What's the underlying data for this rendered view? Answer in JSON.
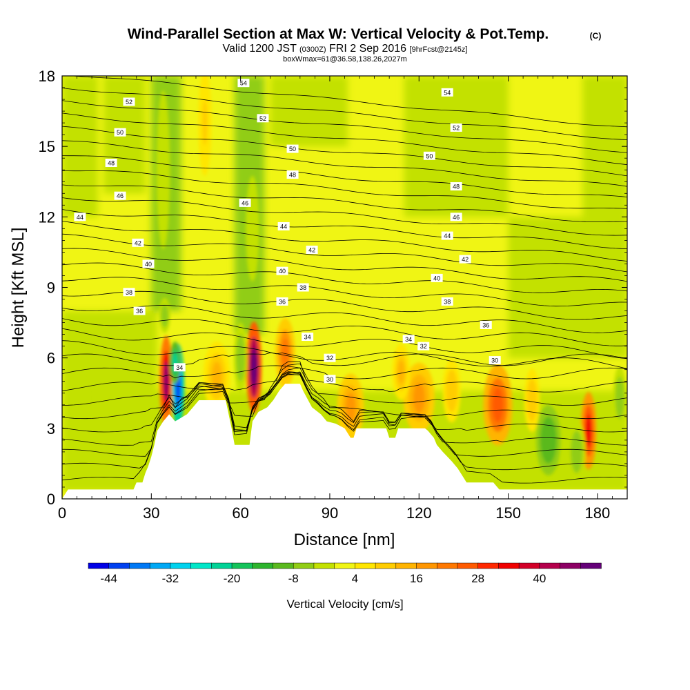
{
  "title": {
    "main": "Wind-Parallel Section at Max W: Vertical Velocity & Pot.Temp.",
    "copyright": "(C)",
    "valid_prefix": "Valid 1200 JST",
    "valid_z": "(0300Z)",
    "valid_date": "FRI 2 Sep 2016",
    "forecast": "[9hrFcst@2145z]",
    "boxline": "boxWmax=61@36.58,138.26,2027m"
  },
  "chart_data": {
    "type": "heatmap",
    "title": "Wind-Parallel Section at Max W: Vertical Velocity & Pot.Temp.",
    "xlabel": "Distance [nm]",
    "ylabel": "Height [Kft MSL]",
    "xlim": [
      0,
      190
    ],
    "ylim": [
      0,
      18
    ],
    "x_ticks": [
      0,
      30,
      60,
      90,
      120,
      150,
      180
    ],
    "y_ticks": [
      0,
      3,
      6,
      9,
      12,
      15,
      18
    ],
    "colorbar": {
      "label": "Vertical Velocity [cm/s]",
      "min": -48,
      "max": 52,
      "step": 4,
      "tick_labels": [
        "-44",
        "-32",
        "-20",
        "-8",
        "4",
        "16",
        "28",
        "40"
      ],
      "colors": [
        "#0000e6",
        "#0040f0",
        "#0078f5",
        "#00a8f5",
        "#00d2ee",
        "#00e6c8",
        "#00d296",
        "#14c35a",
        "#2db42d",
        "#5ab91e",
        "#91cd14",
        "#c3e100",
        "#f0f514",
        "#ffe600",
        "#ffcd00",
        "#ffb400",
        "#ff9600",
        "#ff7800",
        "#ff5a00",
        "#ff2800",
        "#f00000",
        "#d20028",
        "#b4004b",
        "#8c0064",
        "#640078"
      ]
    },
    "terrain_kft": [
      [
        0,
        0.0
      ],
      [
        2,
        0.4
      ],
      [
        24,
        0.4
      ],
      [
        25,
        0.7
      ],
      [
        27,
        0.7
      ],
      [
        28,
        1.1
      ],
      [
        29,
        1.4
      ],
      [
        30,
        1.8
      ],
      [
        31,
        2.3
      ],
      [
        32,
        2.9
      ],
      [
        34,
        3.3
      ],
      [
        36,
        3.6
      ],
      [
        38,
        3.3
      ],
      [
        42,
        3.6
      ],
      [
        44,
        3.9
      ],
      [
        46,
        4.2
      ],
      [
        55,
        4.2
      ],
      [
        56,
        3.6
      ],
      [
        57,
        3.0
      ],
      [
        58,
        2.3
      ],
      [
        63,
        2.3
      ],
      [
        64,
        3.3
      ],
      [
        66,
        3.7
      ],
      [
        69,
        3.9
      ],
      [
        71,
        4.2
      ],
      [
        73,
        4.6
      ],
      [
        75,
        4.9
      ],
      [
        80,
        4.9
      ],
      [
        81,
        4.6
      ],
      [
        84,
        3.9
      ],
      [
        87,
        3.6
      ],
      [
        89,
        3.3
      ],
      [
        92,
        3.2
      ],
      [
        95,
        3.0
      ],
      [
        97,
        2.6
      ],
      [
        98,
        2.6
      ],
      [
        99,
        3.0
      ],
      [
        109,
        3.0
      ],
      [
        110,
        2.6
      ],
      [
        112,
        2.6
      ],
      [
        113,
        3.0
      ],
      [
        122,
        3.0
      ],
      [
        123,
        2.9
      ],
      [
        125,
        2.6
      ],
      [
        126,
        2.3
      ],
      [
        128,
        2.0
      ],
      [
        131,
        1.6
      ],
      [
        133,
        1.3
      ],
      [
        134,
        1.1
      ],
      [
        136,
        0.7
      ],
      [
        145,
        0.7
      ],
      [
        147,
        0.4
      ],
      [
        160,
        0.4
      ],
      [
        190,
        0.4
      ],
      [
        190,
        0.0
      ]
    ],
    "updrafts": [
      {
        "x": 35.0,
        "y": 5.0,
        "w": 3.0,
        "h": 2.6,
        "value": 44
      },
      {
        "x": 64.5,
        "y": 5.6,
        "w": 3.5,
        "h": 2.6,
        "value": 52
      },
      {
        "x": 75.0,
        "y": 6.2,
        "w": 4.5,
        "h": 2.0,
        "value": 20
      },
      {
        "x": 97.0,
        "y": 3.9,
        "w": 6.0,
        "h": 1.9,
        "value": 16
      },
      {
        "x": 120.0,
        "y": 4.3,
        "w": 7.0,
        "h": 2.0,
        "value": 16
      },
      {
        "x": 146.5,
        "y": 4.0,
        "w": 6.5,
        "h": 2.3,
        "value": 26
      },
      {
        "x": 177.0,
        "y": 2.9,
        "w": 3.5,
        "h": 2.2,
        "value": 34
      },
      {
        "x": 52.0,
        "y": 5.2,
        "w": 6.0,
        "h": 2.0,
        "value": 12
      },
      {
        "x": 48.0,
        "y": 16.0,
        "w": 3.0,
        "h": 3.0,
        "value": 8
      },
      {
        "x": 114.0,
        "y": 5.4,
        "w": 4.0,
        "h": 1.6,
        "value": 12
      },
      {
        "x": 131.0,
        "y": 4.6,
        "w": 4.0,
        "h": 1.8,
        "value": 10
      },
      {
        "x": 158.0,
        "y": 4.2,
        "w": 3.5,
        "h": 1.8,
        "value": 10
      }
    ],
    "downdrafts": [
      {
        "x": 39.0,
        "y": 4.8,
        "w": 2.8,
        "h": 2.4,
        "value": -44
      },
      {
        "x": 38.0,
        "y": 5.8,
        "w": 2.5,
        "h": 1.2,
        "value": -24
      },
      {
        "x": 60.0,
        "y": 6.0,
        "w": 3.0,
        "h": 2.0,
        "value": -8
      },
      {
        "x": 34.5,
        "y": 7.8,
        "w": 2.5,
        "h": 1.0,
        "value": -8
      },
      {
        "x": 163.5,
        "y": 2.5,
        "w": 5.5,
        "h": 2.0,
        "value": -12
      },
      {
        "x": 173.0,
        "y": 2.0,
        "w": 4.0,
        "h": 1.8,
        "value": -8
      },
      {
        "x": 187.5,
        "y": 4.3,
        "w": 3.0,
        "h": 1.8,
        "value": -8
      },
      {
        "x": 6.0,
        "y": 4.3,
        "w": 3.5,
        "h": 1.2,
        "value": -4
      },
      {
        "x": 64.0,
        "y": 11.5,
        "w": 3.0,
        "h": 3.0,
        "value": -4
      },
      {
        "x": 34.0,
        "y": 14.0,
        "w": 3.0,
        "h": 4.5,
        "value": -4
      }
    ],
    "isentrope_labels": [
      {
        "x": 61,
        "y": 17.7,
        "text": "54"
      },
      {
        "x": 129.5,
        "y": 17.3,
        "text": "54"
      },
      {
        "x": 22.5,
        "y": 16.9,
        "text": "52"
      },
      {
        "x": 67.5,
        "y": 16.2,
        "text": "52"
      },
      {
        "x": 132.5,
        "y": 15.8,
        "text": "52"
      },
      {
        "x": 19.5,
        "y": 15.6,
        "text": "50"
      },
      {
        "x": 77.5,
        "y": 14.9,
        "text": "50"
      },
      {
        "x": 123.5,
        "y": 14.6,
        "text": "50"
      },
      {
        "x": 16.5,
        "y": 14.3,
        "text": "48"
      },
      {
        "x": 77.5,
        "y": 13.8,
        "text": "48"
      },
      {
        "x": 132.5,
        "y": 13.3,
        "text": "48"
      },
      {
        "x": 19.5,
        "y": 12.9,
        "text": "46"
      },
      {
        "x": 61.5,
        "y": 12.6,
        "text": "46"
      },
      {
        "x": 132.5,
        "y": 12.0,
        "text": "46"
      },
      {
        "x": 6.0,
        "y": 12.0,
        "text": "44"
      },
      {
        "x": 74.5,
        "y": 11.6,
        "text": "44"
      },
      {
        "x": 129.5,
        "y": 11.2,
        "text": "44"
      },
      {
        "x": 25.5,
        "y": 10.9,
        "text": "42"
      },
      {
        "x": 84.0,
        "y": 10.6,
        "text": "42"
      },
      {
        "x": 135.5,
        "y": 10.2,
        "text": "42"
      },
      {
        "x": 29.0,
        "y": 10.0,
        "text": "40"
      },
      {
        "x": 74.0,
        "y": 9.7,
        "text": "40"
      },
      {
        "x": 126.0,
        "y": 9.4,
        "text": "40"
      },
      {
        "x": 22.5,
        "y": 8.8,
        "text": "38"
      },
      {
        "x": 81.0,
        "y": 9.0,
        "text": "38"
      },
      {
        "x": 129.5,
        "y": 8.4,
        "text": "38"
      },
      {
        "x": 26.0,
        "y": 8.0,
        "text": "36"
      },
      {
        "x": 74.0,
        "y": 8.4,
        "text": "36"
      },
      {
        "x": 142.5,
        "y": 7.4,
        "text": "36"
      },
      {
        "x": 39.5,
        "y": 5.6,
        "text": "34"
      },
      {
        "x": 82.5,
        "y": 6.9,
        "text": "34"
      },
      {
        "x": 116.5,
        "y": 6.8,
        "text": "34"
      },
      {
        "x": 121.5,
        "y": 6.5,
        "text": "32"
      },
      {
        "x": 90.0,
        "y": 6.0,
        "text": "32"
      },
      {
        "x": 90.0,
        "y": 5.1,
        "text": "30"
      },
      {
        "x": 145.5,
        "y": 5.9,
        "text": "30"
      }
    ]
  }
}
